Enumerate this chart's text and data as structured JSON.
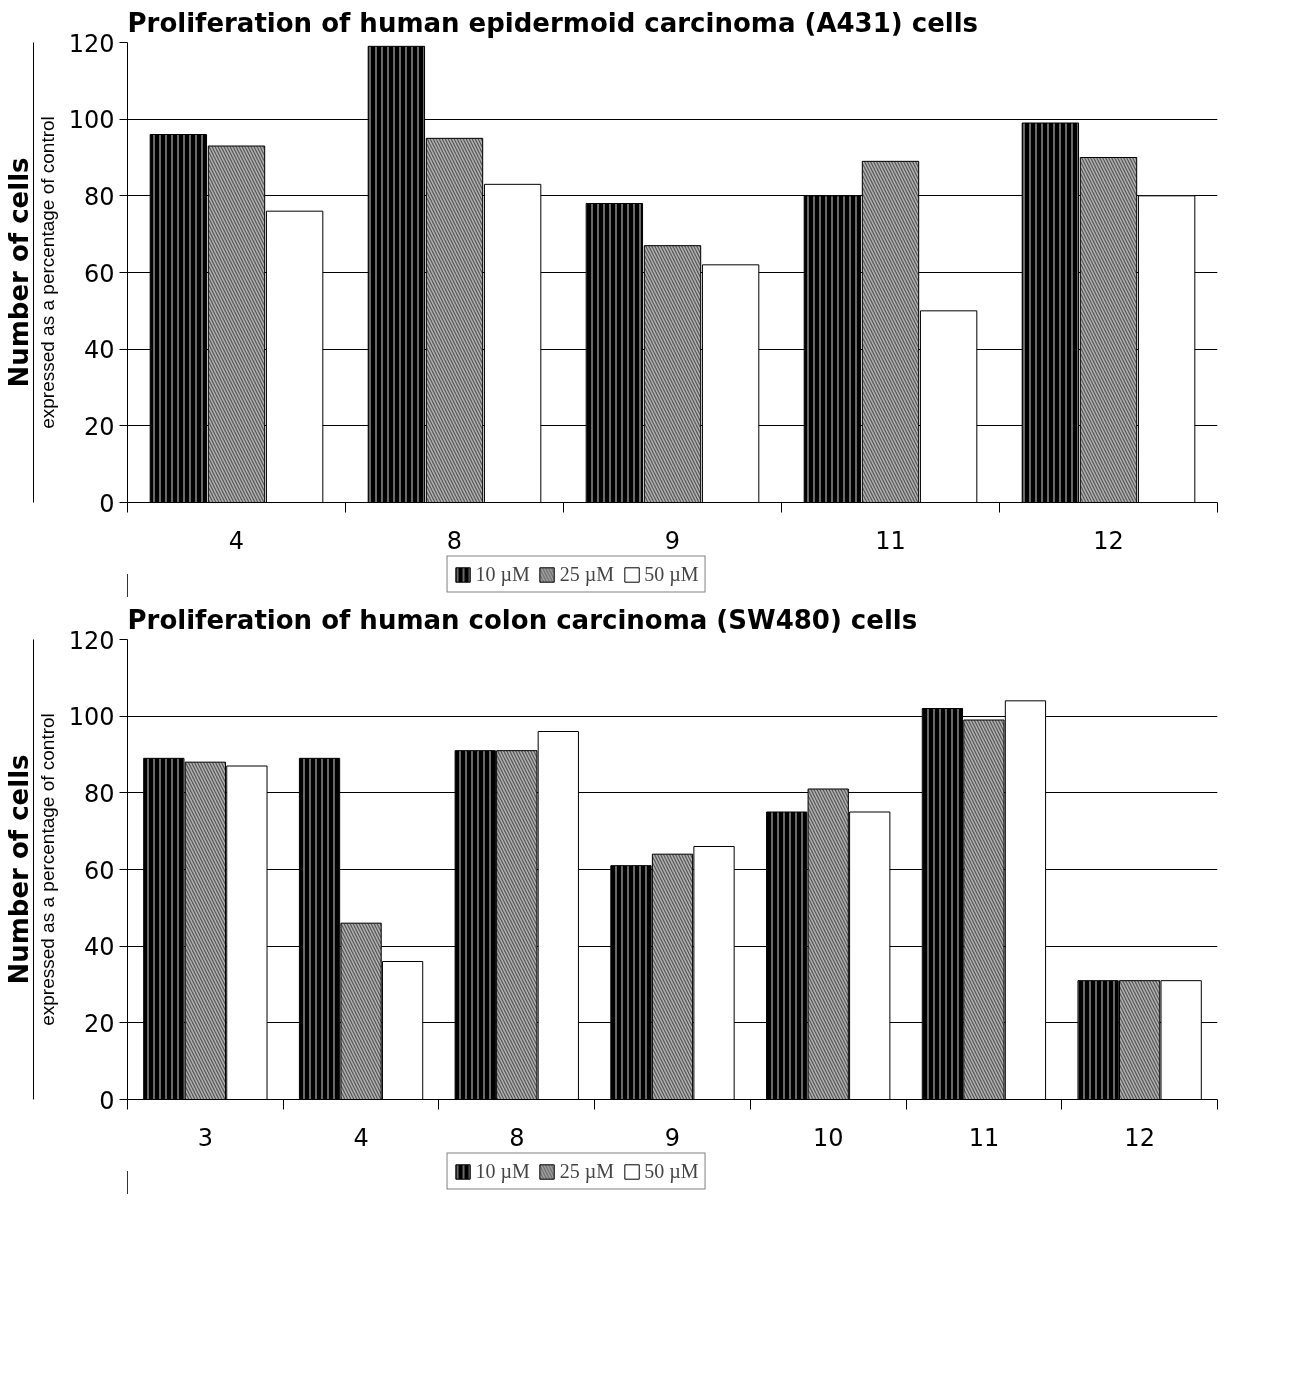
{
  "chart_data": [
    {
      "type": "bar",
      "title": "Proliferation of human epidermoid carcinoma (A431) cells",
      "ylabel": "Number of cells",
      "annotations": [
        "expressed as a percentage of control"
      ],
      "categories": [
        "4",
        "8",
        "9",
        "11",
        "12"
      ],
      "ylim": [
        0,
        120
      ],
      "yticks": [
        0,
        20,
        40,
        60,
        80,
        100,
        120
      ],
      "grid": "y",
      "legend": "bottom",
      "series": [
        {
          "name": "10 µM",
          "color": "#000000",
          "values": [
            96,
            119,
            78,
            80,
            99
          ]
        },
        {
          "name": "25 µM",
          "color": "#555555",
          "values": [
            93,
            95,
            67,
            89,
            90
          ]
        },
        {
          "name": "50 µM",
          "color": "#ffffff",
          "values": [
            76,
            83,
            62,
            50,
            80
          ]
        }
      ]
    },
    {
      "type": "bar",
      "title": "Proliferation of human colon carcinoma (SW480) cells",
      "ylabel": "Number of cells",
      "annotations": [
        "expressed as a percentage of control"
      ],
      "categories": [
        "3",
        "4",
        "8",
        "9",
        "10",
        "11",
        "12"
      ],
      "ylim": [
        0,
        120
      ],
      "yticks": [
        0,
        20,
        40,
        60,
        80,
        100,
        120
      ],
      "grid": "y",
      "legend": "bottom",
      "series": [
        {
          "name": "10 µM",
          "color": "#000000",
          "values": [
            89,
            89,
            91,
            61,
            75,
            102,
            31
          ]
        },
        {
          "name": "25 µM",
          "color": "#555555",
          "values": [
            88,
            46,
            91,
            64,
            81,
            99,
            31
          ]
        },
        {
          "name": "50 µM",
          "color": "#ffffff",
          "values": [
            87,
            36,
            96,
            66,
            75,
            104,
            31
          ]
        }
      ]
    }
  ]
}
